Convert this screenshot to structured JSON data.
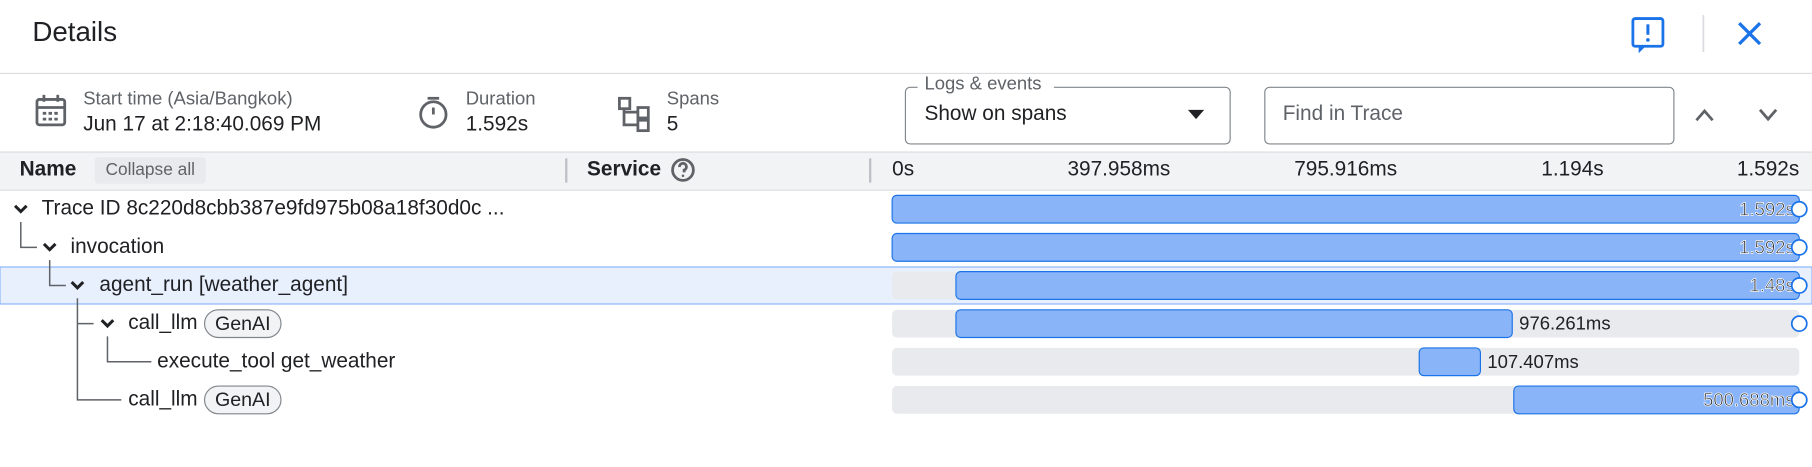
{
  "header": {
    "title": "Details"
  },
  "summary": {
    "start_time": {
      "label": "Start time (Asia/Bangkok)",
      "value": "Jun 17 at 2:18:40.069 PM"
    },
    "duration": {
      "label": "Duration",
      "value": "1.592s"
    },
    "spans": {
      "label": "Spans",
      "value": "5"
    }
  },
  "logs_events": {
    "label": "Logs & events",
    "value": "Show on spans"
  },
  "search": {
    "placeholder": "Find in Trace"
  },
  "table": {
    "columns": {
      "name": "Name",
      "collapse_all": "Collapse all",
      "service": "Service"
    },
    "timeline": {
      "xlim": [
        0,
        1592
      ],
      "xticks": [
        {
          "value": 0,
          "label": "0s"
        },
        {
          "value": 397.958,
          "label": "397.958ms"
        },
        {
          "value": 795.916,
          "label": "795.916ms"
        },
        {
          "value": 1194,
          "label": "1.194s"
        },
        {
          "value": 1592,
          "label": "1.592s"
        }
      ]
    },
    "rows": [
      {
        "name": "Trace ID 8c220d8cbb387e9fd975b08a18f30d0c ...",
        "start_ms": 0,
        "duration_ms": 1592,
        "duration_label": "1.592s"
      },
      {
        "name": "invocation",
        "start_ms": 0,
        "duration_ms": 1592,
        "duration_label": "1.592s"
      },
      {
        "name": "agent_run [weather_agent]",
        "start_ms": 112,
        "duration_ms": 1480,
        "duration_label": "1.48s"
      },
      {
        "name": "call_llm",
        "tag": "GenAI",
        "start_ms": 112,
        "duration_ms": 976.261,
        "duration_label": "976.261ms"
      },
      {
        "name": "execute_tool get_weather",
        "start_ms": 925,
        "duration_ms": 107.407,
        "duration_label": "107.407ms"
      },
      {
        "name": "call_llm",
        "tag": "GenAI",
        "start_ms": 1091,
        "duration_ms": 500.688,
        "duration_label": "500.688ms"
      }
    ]
  }
}
